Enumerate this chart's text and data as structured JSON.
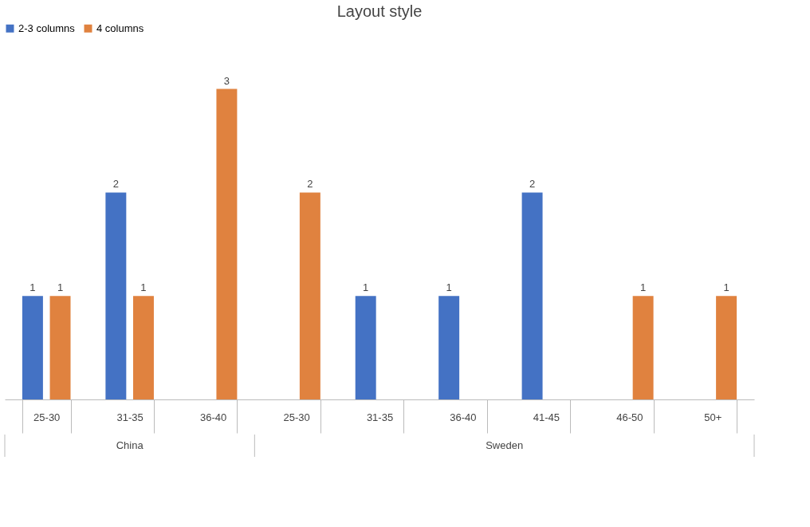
{
  "chart_data": {
    "type": "bar",
    "title": "Layout style",
    "categories": [
      "25-30",
      "31-35",
      "36-40",
      "25-30",
      "31-35",
      "36-40",
      "41-45",
      "46-50",
      "50+"
    ],
    "series": [
      {
        "name": "2-3 columns",
        "color": "#4472c4",
        "values": [
          1,
          2,
          null,
          null,
          1,
          1,
          2,
          null,
          null
        ]
      },
      {
        "name": "4 columns",
        "color": "#e0823f",
        "values": [
          1,
          1,
          3,
          2,
          null,
          null,
          null,
          1,
          1
        ]
      }
    ],
    "annotations": [
      "China",
      "Sweden"
    ],
    "data_labels": true,
    "legend": "top",
    "grid": false
  }
}
